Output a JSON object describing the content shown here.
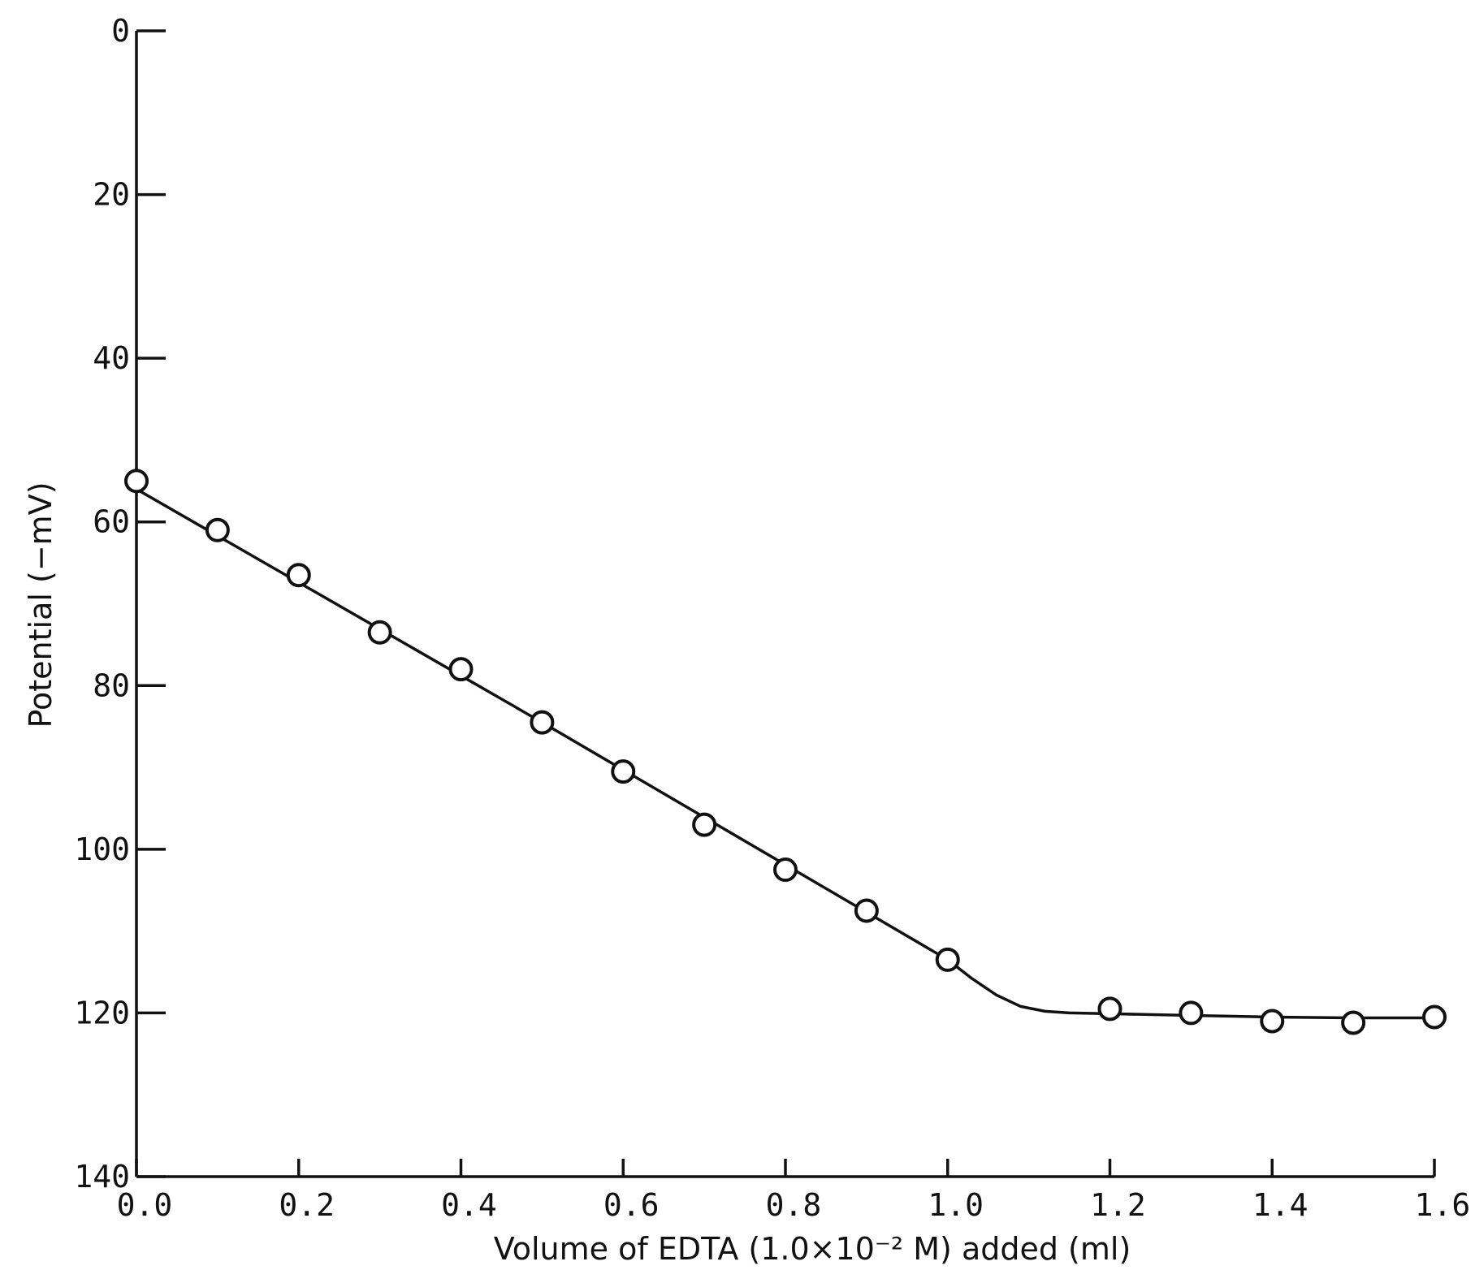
{
  "chart_data": {
    "type": "scatter",
    "xlabel": "Volume of EDTA (1.0×10⁻² M) added (ml)",
    "ylabel": "Potential (−mV)",
    "xlim": [
      0.0,
      1.6
    ],
    "ylim": [
      0,
      140
    ],
    "y_inverted": true,
    "grid": false,
    "x_ticks": [
      "0.0",
      "0.2",
      "0.4",
      "0.6",
      "0.8",
      "1.0",
      "1.2",
      "1.4",
      "1.6"
    ],
    "y_ticks": [
      "0",
      "20",
      "40",
      "60",
      "80",
      "100",
      "120",
      "140"
    ],
    "series": [
      {
        "marker": "open-circle",
        "x": [
          0.0,
          0.1,
          0.2,
          0.3,
          0.4,
          0.5,
          0.6,
          0.7,
          0.8,
          0.9,
          1.0,
          1.2,
          1.3,
          1.4,
          1.5,
          1.6
        ],
        "y": [
          55,
          61,
          66.5,
          73.5,
          78,
          84.5,
          90.5,
          97,
          102.5,
          107.5,
          113.5,
          119.5,
          120,
          121,
          121.2,
          120.5
        ]
      }
    ],
    "fit_line": {
      "x": [
        0.0,
        0.5,
        1.0,
        1.03,
        1.06,
        1.09,
        1.12,
        1.15,
        1.2,
        1.3,
        1.4,
        1.5,
        1.6
      ],
      "y": [
        56,
        84.5,
        113.5,
        115.8,
        117.8,
        119.2,
        119.8,
        120.0,
        120.1,
        120.3,
        120.5,
        120.6,
        120.6
      ]
    },
    "colors": {
      "ink": "#111111",
      "background": "#ffffff"
    }
  }
}
